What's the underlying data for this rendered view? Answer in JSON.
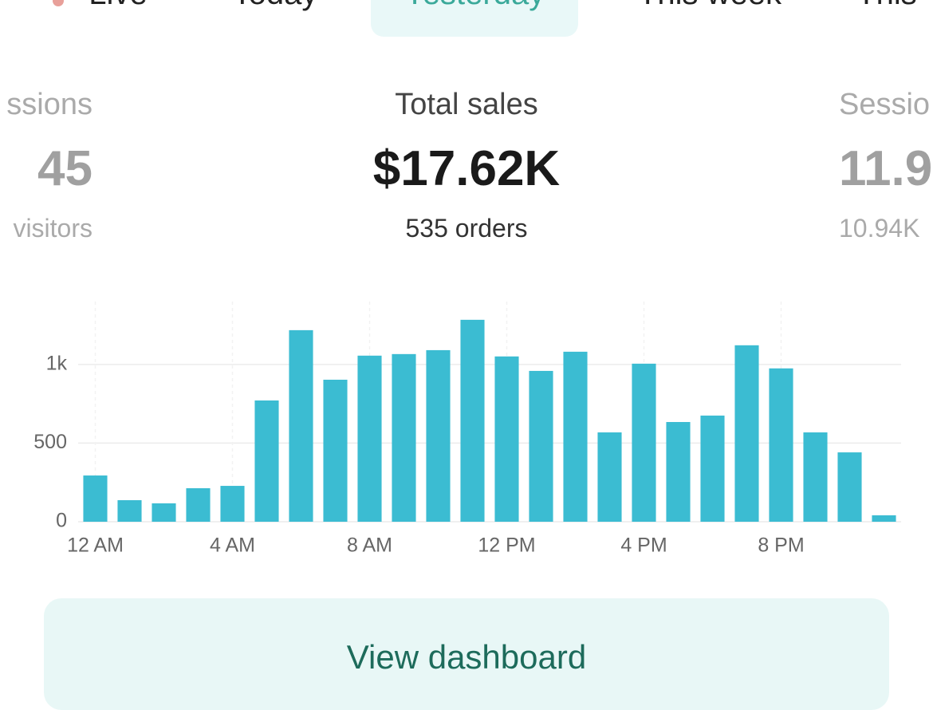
{
  "tabs": [
    "Live",
    "Today",
    "Yesterday",
    "This week",
    "This"
  ],
  "selected_tab": 2,
  "metrics": [
    {
      "label": "ssions",
      "value": "45",
      "sub": "visitors"
    },
    {
      "label": "Total sales",
      "value": "$17.62K",
      "sub": "535 orders"
    },
    {
      "label": "Sessio",
      "value": "11.9",
      "sub": "10.94K"
    }
  ],
  "chart_data": {
    "type": "bar",
    "color": "#3bbcd2",
    "grid": true,
    "categories": [
      "12 AM",
      null,
      null,
      null,
      "4 AM",
      null,
      null,
      null,
      "8 AM",
      null,
      null,
      null,
      "12 PM",
      null,
      null,
      null,
      "4 PM",
      null,
      null,
      null,
      "8 PM",
      null,
      null,
      null
    ],
    "values": [
      294,
      137,
      117,
      213,
      228,
      771,
      1218,
      903,
      1056,
      1066,
      1091,
      1284,
      1051,
      959,
      1081,
      568,
      1005,
      634,
      675,
      1122,
      975,
      568,
      441,
      41
    ],
    "ylim": [
      0,
      1400
    ],
    "yticks": [
      0,
      500,
      {
        "value": 1000,
        "label": "1k"
      }
    ]
  },
  "button": "View dashboard"
}
